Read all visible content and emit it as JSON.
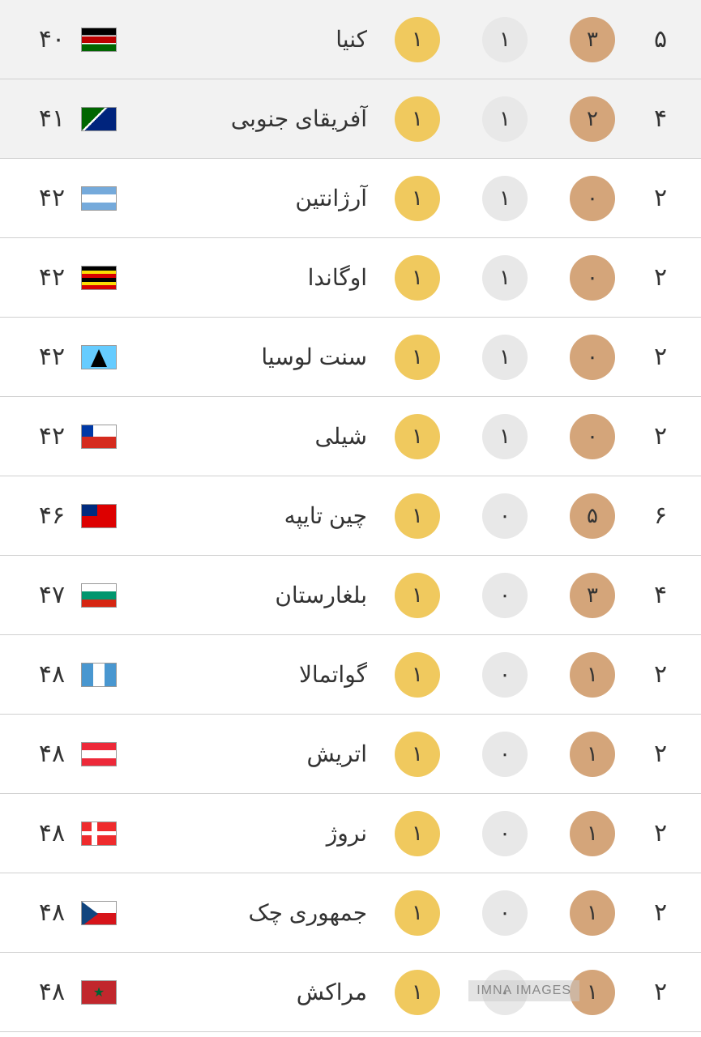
{
  "colors": {
    "gold_bg": "#f0c95e",
    "silver_bg": "#e8e8e8",
    "bronze_bg": "#d4a57a",
    "row_alt_bg": "#f2f2f2",
    "row_bg": "#ffffff",
    "border": "#d0d0d0",
    "text": "#333333"
  },
  "watermark": "IMNA IMAGES",
  "rows": [
    {
      "rank": "۴۰",
      "country": "کنیا",
      "flag_class": "flag-kenya",
      "gold": "۱",
      "silver": "۱",
      "bronze": "۳",
      "total": "۵",
      "alt": true
    },
    {
      "rank": "۴۱",
      "country": "آفریقای جنوبی",
      "flag_class": "flag-southafrica",
      "gold": "۱",
      "silver": "۱",
      "bronze": "۲",
      "total": "۴",
      "alt": true
    },
    {
      "rank": "۴۲",
      "country": "آرژانتین",
      "flag_class": "flag-argentina",
      "gold": "۱",
      "silver": "۱",
      "bronze": "۰",
      "total": "۲",
      "alt": false
    },
    {
      "rank": "۴۲",
      "country": "اوگاندا",
      "flag_class": "flag-uganda",
      "gold": "۱",
      "silver": "۱",
      "bronze": "۰",
      "total": "۲",
      "alt": false
    },
    {
      "rank": "۴۲",
      "country": "سنت لوسیا",
      "flag_class": "flag-stlucia",
      "gold": "۱",
      "silver": "۱",
      "bronze": "۰",
      "total": "۲",
      "alt": false
    },
    {
      "rank": "۴۲",
      "country": "شیلی",
      "flag_class": "flag-chile",
      "gold": "۱",
      "silver": "۱",
      "bronze": "۰",
      "total": "۲",
      "alt": false
    },
    {
      "rank": "۴۶",
      "country": "چین تایپه",
      "flag_class": "flag-taipei",
      "gold": "۱",
      "silver": "۰",
      "bronze": "۵",
      "total": "۶",
      "alt": false
    },
    {
      "rank": "۴۷",
      "country": "بلغارستان",
      "flag_class": "flag-bulgaria",
      "gold": "۱",
      "silver": "۰",
      "bronze": "۳",
      "total": "۴",
      "alt": false
    },
    {
      "rank": "۴۸",
      "country": "گواتمالا",
      "flag_class": "flag-guatemala",
      "gold": "۱",
      "silver": "۰",
      "bronze": "۱",
      "total": "۲",
      "alt": false
    },
    {
      "rank": "۴۸",
      "country": "اتریش",
      "flag_class": "flag-austria",
      "gold": "۱",
      "silver": "۰",
      "bronze": "۱",
      "total": "۲",
      "alt": false
    },
    {
      "rank": "۴۸",
      "country": "نروژ",
      "flag_class": "flag-norway",
      "gold": "۱",
      "silver": "۰",
      "bronze": "۱",
      "total": "۲",
      "alt": false
    },
    {
      "rank": "۴۸",
      "country": "جمهوری چک",
      "flag_class": "flag-czech",
      "gold": "۱",
      "silver": "۰",
      "bronze": "۱",
      "total": "۲",
      "alt": false
    },
    {
      "rank": "۴۸",
      "country": "مراکش",
      "flag_class": "flag-morocco",
      "gold": "۱",
      "silver": "۰",
      "bronze": "۱",
      "total": "۲",
      "alt": false
    }
  ]
}
